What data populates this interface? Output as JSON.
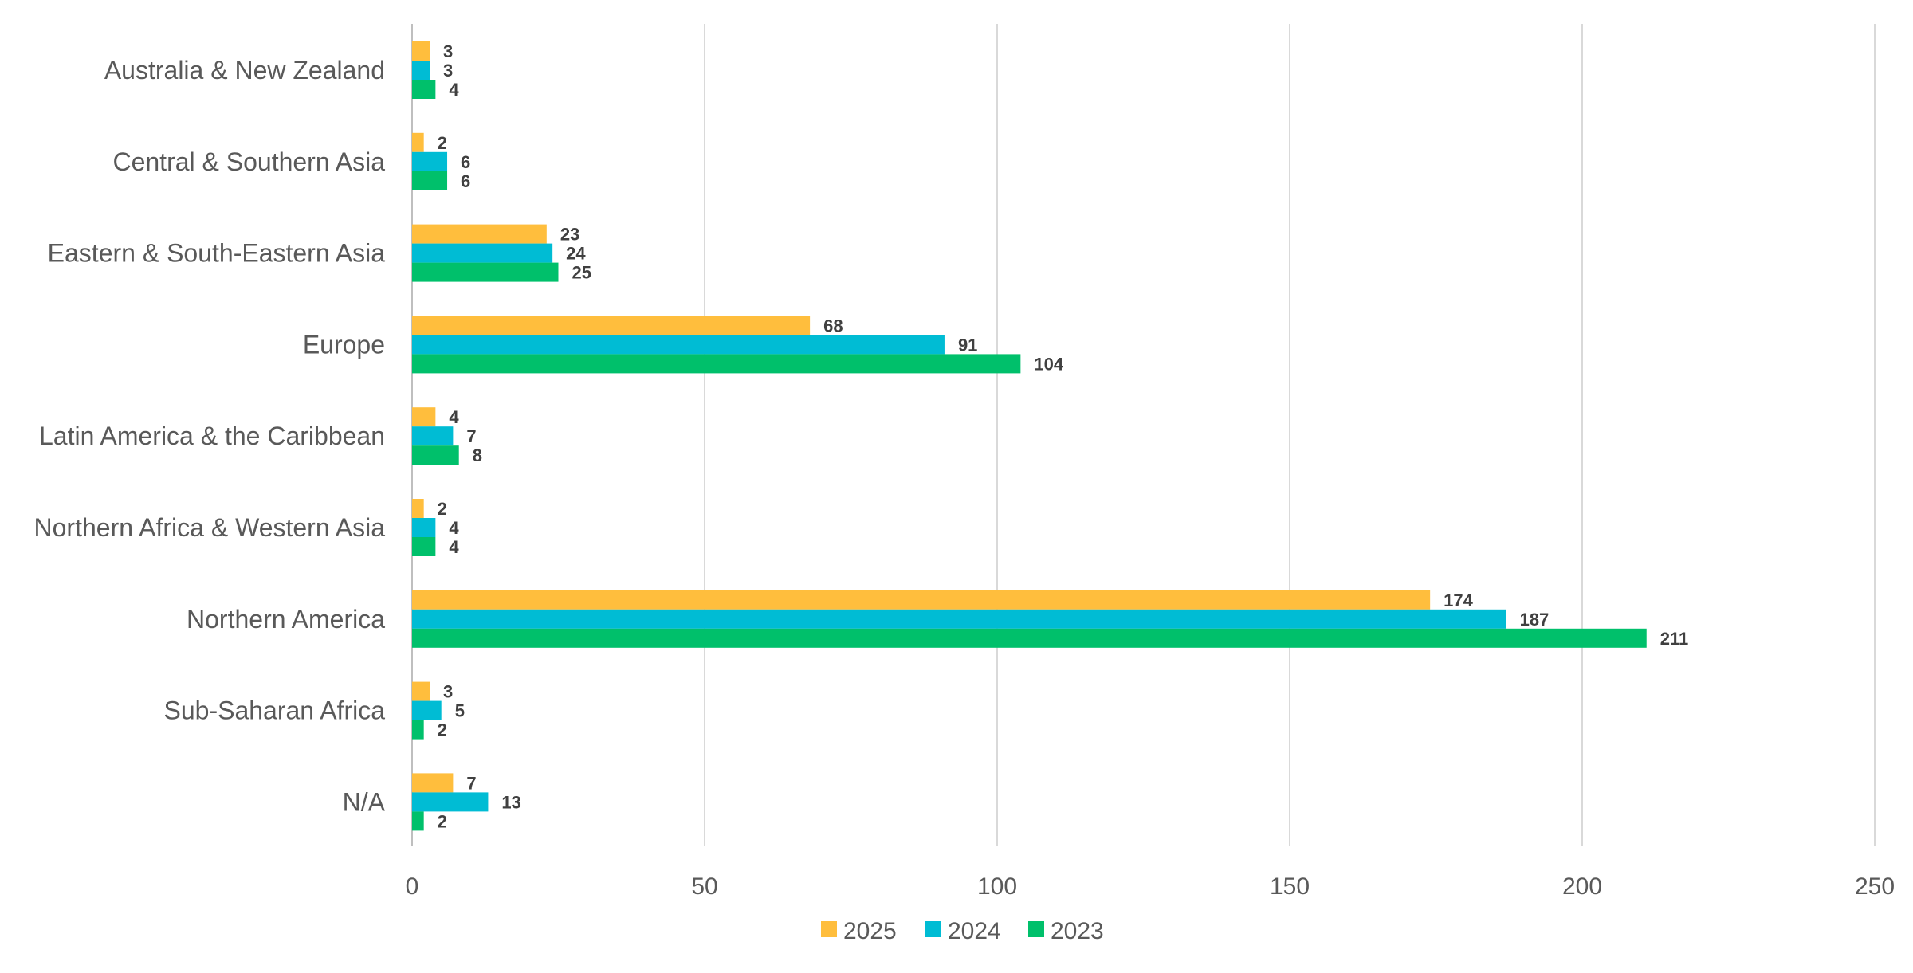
{
  "chart_data": {
    "type": "bar",
    "orientation": "horizontal",
    "title": "",
    "xlabel": "",
    "ylabel": "",
    "xlim": [
      0,
      250
    ],
    "x_ticks": [
      0,
      50,
      100,
      150,
      200,
      250
    ],
    "grid": true,
    "legend_position": "bottom",
    "categories": [
      "Australia & New Zealand",
      "Central & Southern Asia",
      "Eastern & South-Eastern Asia",
      "Europe",
      "Latin America & the Caribbean",
      "Northern Africa & Western Asia",
      "Northern America",
      "Sub-Saharan Africa",
      "N/A"
    ],
    "series": [
      {
        "name": "2025",
        "color": "#FFBE3D",
        "values": [
          3,
          2,
          23,
          68,
          4,
          2,
          174,
          3,
          7
        ]
      },
      {
        "name": "2024",
        "color": "#00BCD4",
        "values": [
          3,
          6,
          24,
          91,
          7,
          4,
          187,
          5,
          13
        ]
      },
      {
        "name": "2023",
        "color": "#00C06B",
        "values": [
          4,
          6,
          25,
          104,
          8,
          4,
          211,
          2,
          2
        ]
      }
    ]
  }
}
